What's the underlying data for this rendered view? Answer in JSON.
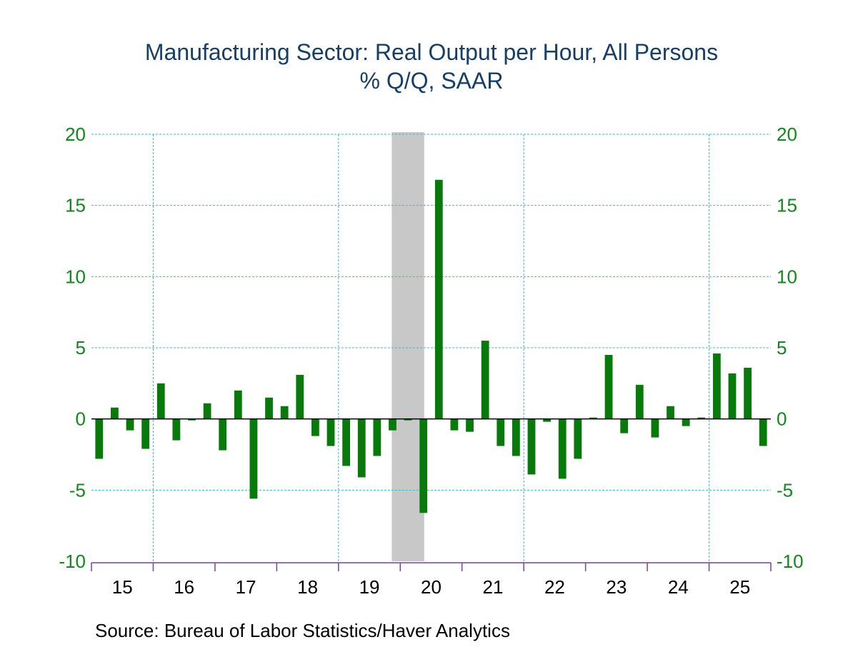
{
  "chart_data": {
    "type": "bar",
    "title": "Manufacturing Sector: Real Output per Hour, All Persons",
    "subtitle": "% Q/Q, SAAR",
    "xlabel": "",
    "ylabel": "",
    "ylim": [
      -10,
      20
    ],
    "yticks": [
      20,
      15,
      10,
      5,
      0,
      -5,
      -10
    ],
    "ytick_labels": [
      "20",
      "15",
      "10",
      "5",
      "0",
      "-5",
      "-10"
    ],
    "year_labels": [
      "15",
      "16",
      "17",
      "18",
      "19",
      "20",
      "21",
      "22",
      "23",
      "24",
      "25"
    ],
    "grid": true,
    "gridlines_x_years": [
      "16",
      "19",
      "22",
      "25"
    ],
    "recession_shading": {
      "start": "2019Q4",
      "end": "2020Q2"
    },
    "bar_color": "#087a0c",
    "recession_color": "#c8c8c8",
    "grid_color": "#3db8d0",
    "axis_label_color": "#12871b",
    "x_axis_color": "#7a3fa0",
    "categories": [
      "2015Q1",
      "2015Q2",
      "2015Q3",
      "2015Q4",
      "2016Q1",
      "2016Q2",
      "2016Q3",
      "2016Q4",
      "2017Q1",
      "2017Q2",
      "2017Q3",
      "2017Q4",
      "2018Q1",
      "2018Q2",
      "2018Q3",
      "2018Q4",
      "2019Q1",
      "2019Q2",
      "2019Q3",
      "2019Q4",
      "2020Q1",
      "2020Q2",
      "2020Q3",
      "2020Q4",
      "2021Q1",
      "2021Q2",
      "2021Q3",
      "2021Q4",
      "2022Q1",
      "2022Q2",
      "2022Q3",
      "2022Q4",
      "2023Q1",
      "2023Q2",
      "2023Q3",
      "2023Q4",
      "2024Q1",
      "2024Q2",
      "2024Q3",
      "2024Q4",
      "2025Q1",
      "2025Q2",
      "2025Q3",
      "2025Q4"
    ],
    "values": [
      -2.8,
      0.8,
      -0.8,
      -2.1,
      2.5,
      -1.5,
      -0.1,
      1.1,
      -2.2,
      2.0,
      -5.6,
      1.5,
      0.9,
      3.1,
      -1.2,
      -1.9,
      -3.3,
      -4.1,
      -2.6,
      -0.8,
      -0.1,
      -6.6,
      16.8,
      -0.8,
      -0.9,
      5.5,
      -1.9,
      -2.6,
      -3.9,
      -0.2,
      -4.2,
      -2.8,
      0.1,
      4.5,
      -1.0,
      2.4,
      -1.3,
      0.9,
      -0.5,
      0.1,
      4.6,
      3.2,
      3.6,
      -1.9
    ]
  },
  "source": "Source:  Bureau of Labor Statistics/Haver Analytics"
}
